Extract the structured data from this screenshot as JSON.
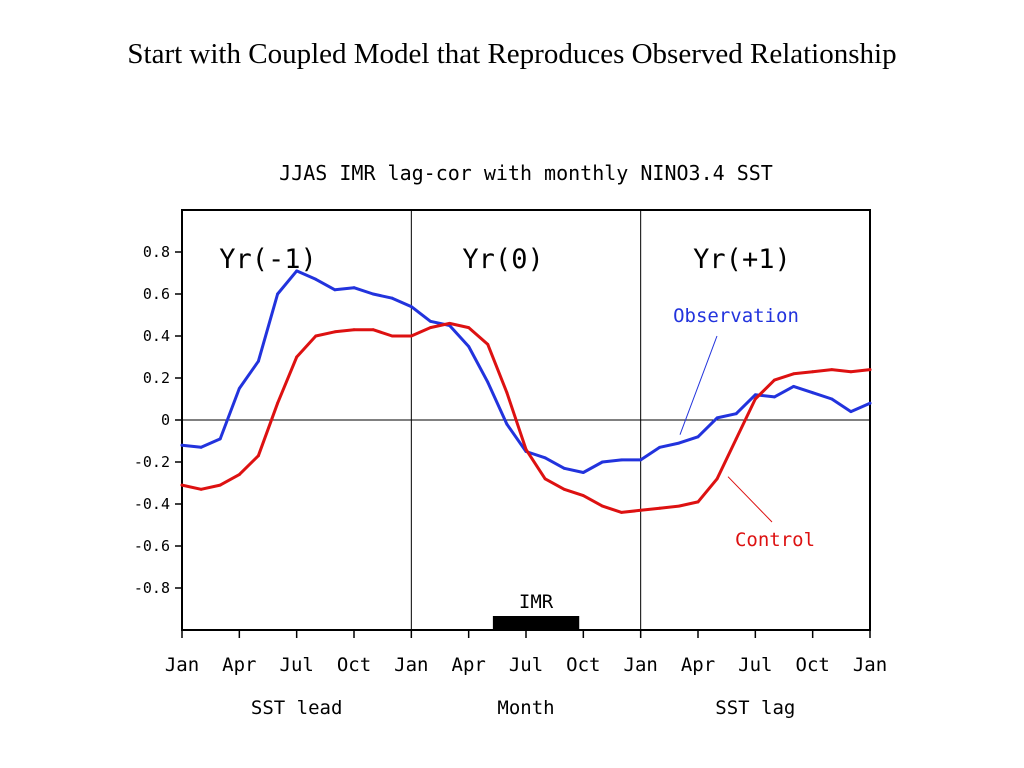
{
  "slide": {
    "title": "Start with Coupled Model that Reproduces Observed Relationship"
  },
  "chart_data": {
    "type": "line",
    "title": "JJAS IMR lag-cor with monthly NINO3.4 SST",
    "x": [
      "Jan",
      "Feb",
      "Mar",
      "Apr",
      "May",
      "Jun",
      "Jul",
      "Aug",
      "Sep",
      "Oct",
      "Nov",
      "Dec",
      "Jan",
      "Feb",
      "Mar",
      "Apr",
      "May",
      "Jun",
      "Jul",
      "Aug",
      "Sep",
      "Oct",
      "Nov",
      "Dec",
      "Jan",
      "Feb",
      "Mar",
      "Apr",
      "May",
      "Jun",
      "Jul",
      "Aug",
      "Sep",
      "Oct",
      "Nov",
      "Dec",
      "Jan"
    ],
    "x_tick_labels": [
      "Jan",
      "Apr",
      "Jul",
      "Oct",
      "Jan",
      "Apr",
      "Jul",
      "Oct",
      "Jan",
      "Apr",
      "Jul",
      "Oct",
      "Jan"
    ],
    "x_group_labels": [
      "SST lead",
      "Month",
      "SST lag"
    ],
    "ylim": [
      -1.0,
      1.0
    ],
    "y_tick_labels": [
      "0.8",
      "0.6",
      "0.4",
      "0.2",
      "0",
      "-0.2",
      "-0.4",
      "-0.6",
      "-0.8"
    ],
    "y_ticks": [
      0.8,
      0.6,
      0.4,
      0.2,
      0,
      -0.2,
      -0.4,
      -0.6,
      -0.8
    ],
    "period_labels": [
      "Yr(-1)",
      "Yr(0)",
      "Yr(+1)"
    ],
    "series": [
      {
        "name": "Observation",
        "color": "#2233dd",
        "values": [
          -0.12,
          -0.13,
          -0.09,
          0.15,
          0.28,
          0.6,
          0.71,
          0.67,
          0.62,
          0.63,
          0.6,
          0.58,
          0.54,
          0.47,
          0.45,
          0.35,
          0.18,
          -0.02,
          -0.15,
          -0.18,
          -0.23,
          -0.25,
          -0.2,
          -0.19,
          -0.19,
          -0.13,
          -0.11,
          -0.08,
          0.01,
          0.03,
          0.12,
          0.11,
          0.16,
          0.13,
          0.1,
          0.04,
          0.08
        ]
      },
      {
        "name": "Control",
        "color": "#dd1111",
        "values": [
          -0.31,
          -0.33,
          -0.31,
          -0.26,
          -0.17,
          0.08,
          0.3,
          0.4,
          0.42,
          0.43,
          0.43,
          0.4,
          0.4,
          0.44,
          0.46,
          0.44,
          0.36,
          0.13,
          -0.14,
          -0.28,
          -0.33,
          -0.36,
          -0.41,
          -0.44,
          -0.43,
          -0.42,
          -0.41,
          -0.39,
          -0.28,
          -0.09,
          0.1,
          0.19,
          0.22,
          0.23,
          0.24,
          0.23,
          0.24
        ]
      }
    ],
    "annotations": {
      "imr_label": "IMR",
      "imr_period": [
        "Jun",
        "Sep"
      ]
    }
  }
}
